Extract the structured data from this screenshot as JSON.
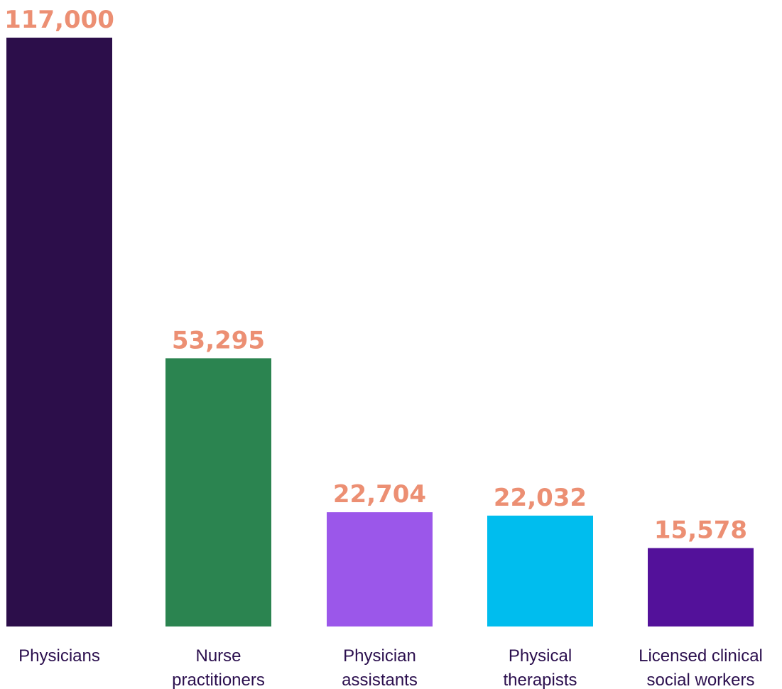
{
  "chart_data": {
    "type": "bar",
    "categories": [
      [
        "Physicians"
      ],
      [
        "Nurse",
        "practitioners"
      ],
      [
        "Physician",
        "assistants"
      ],
      [
        "Physical",
        "therapists"
      ],
      [
        "Licensed clinical",
        "social workers"
      ]
    ],
    "values": [
      117000,
      53295,
      22704,
      22032,
      15578
    ],
    "value_labels": [
      "117,000",
      "53,295",
      "22,704",
      "22,032",
      "15,578"
    ],
    "bar_colors": [
      "#2c0e4a",
      "#2b8450",
      "#9b57ea",
      "#00bdee",
      "#53119a"
    ],
    "label_color": "#ec8f73",
    "ylim": [
      0,
      117000
    ],
    "grid": false,
    "legend": "none"
  }
}
